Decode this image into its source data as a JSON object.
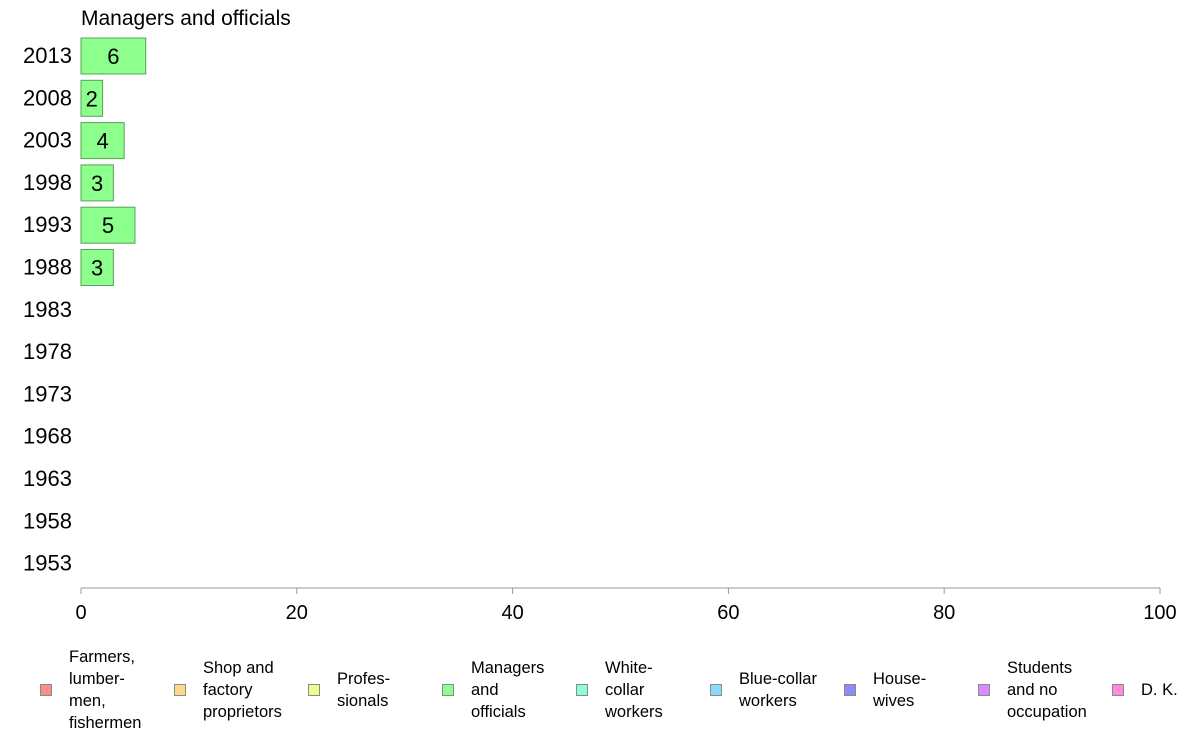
{
  "chart_data": {
    "type": "bar",
    "orientation": "horizontal",
    "title": "Managers and officials",
    "categories": [
      "2013",
      "2008",
      "2003",
      "1998",
      "1993",
      "1988",
      "1983",
      "1978",
      "1973",
      "1968",
      "1963",
      "1958",
      "1953"
    ],
    "values": [
      6,
      2,
      4,
      3,
      5,
      3,
      null,
      null,
      null,
      null,
      null,
      null,
      null
    ],
    "data_labels": [
      "6",
      "2",
      "4",
      "3",
      "5",
      "3",
      "",
      "",
      "",
      "",
      "",
      "",
      ""
    ],
    "xlim": [
      0,
      100
    ],
    "x_ticks": [
      "0",
      "20",
      "40",
      "60",
      "80",
      "100"
    ],
    "grid": false,
    "bar_color": "#8cff8c",
    "bar_edge_color": "#5aa05a",
    "legend_position": "bottom",
    "legend": [
      {
        "label": "Farmers,\nlumber-\nmen,\nfishermen",
        "color": "#ff8c8c"
      },
      {
        "label": "Shop and\nfactory\nproprietors",
        "color": "#ffd88c"
      },
      {
        "label": "Profes-\nsionals",
        "color": "#e8ff8c"
      },
      {
        "label": "Managers\nand\nofficials",
        "color": "#8cff8c"
      },
      {
        "label": "White-\ncollar\nworkers",
        "color": "#8cffd8"
      },
      {
        "label": "Blue-collar\nworkers",
        "color": "#8cd8ff"
      },
      {
        "label": "House-\nwives",
        "color": "#8c8cff"
      },
      {
        "label": "Students\nand no\noccupation",
        "color": "#d88cff"
      },
      {
        "label": "D. K.",
        "color": "#ff8cd8"
      }
    ]
  }
}
